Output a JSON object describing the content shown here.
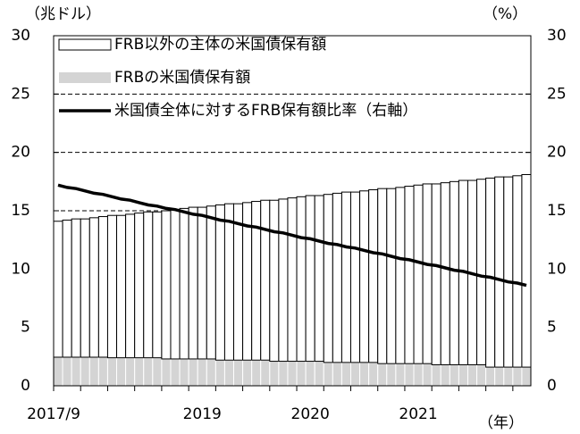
{
  "chart_data": {
    "type": "bar+line",
    "y_label": "（兆ドル）",
    "y2_label": "（%）",
    "x_label": "（年）",
    "categories": [
      "2017/9",
      null,
      null,
      null,
      null,
      null,
      null,
      null,
      null,
      null,
      null,
      null,
      null,
      null,
      null,
      null,
      "2019",
      null,
      null,
      null,
      null,
      null,
      null,
      null,
      null,
      null,
      null,
      null,
      "2020",
      null,
      null,
      null,
      null,
      null,
      null,
      null,
      null,
      null,
      null,
      null,
      "2021",
      null,
      null,
      null,
      null,
      null,
      null,
      null,
      null,
      null,
      null,
      null,
      null
    ],
    "series": [
      {
        "name": "FRB以外の主体の米国債保有額",
        "type": "bar",
        "color": "#ffffff",
        "values": [
          11.65,
          11.75,
          11.85,
          11.85,
          11.95,
          12.05,
          12.2,
          12.2,
          12.3,
          12.4,
          12.5,
          12.5,
          12.7,
          12.8,
          12.9,
          13.0,
          13.0,
          13.1,
          13.3,
          13.4,
          13.4,
          13.5,
          13.6,
          13.7,
          13.8,
          13.9,
          14.0,
          14.1,
          14.2,
          14.2,
          14.4,
          14.5,
          14.6,
          14.6,
          14.7,
          14.8,
          15.0,
          15.0,
          15.1,
          15.2,
          15.3,
          15.4,
          15.5,
          15.6,
          15.7,
          15.8,
          15.8,
          15.9,
          16.2,
          16.3,
          16.3,
          16.4,
          16.5
        ]
      },
      {
        "name": "FRBの米国債保有額",
        "type": "bar",
        "color": "#d4d4d4",
        "values": [
          2.45,
          2.45,
          2.45,
          2.45,
          2.45,
          2.45,
          2.4,
          2.4,
          2.4,
          2.4,
          2.4,
          2.4,
          2.3,
          2.3,
          2.3,
          2.3,
          2.3,
          2.3,
          2.2,
          2.2,
          2.2,
          2.2,
          2.2,
          2.2,
          2.1,
          2.1,
          2.1,
          2.1,
          2.1,
          2.1,
          2.0,
          2.0,
          2.0,
          2.0,
          2.0,
          2.0,
          1.9,
          1.9,
          1.9,
          1.9,
          1.9,
          1.9,
          1.8,
          1.8,
          1.8,
          1.8,
          1.8,
          1.8,
          1.6,
          1.6,
          1.6,
          1.6,
          1.6
        ]
      },
      {
        "name": "米国債全体に対するFRB保有額比率（右軸）",
        "type": "line",
        "axis": "y2",
        "color": "#000000",
        "values": [
          17.2,
          17.0,
          16.9,
          16.7,
          16.5,
          16.4,
          16.2,
          16.0,
          15.9,
          15.7,
          15.5,
          15.4,
          15.2,
          15.1,
          14.9,
          14.7,
          14.6,
          14.4,
          14.2,
          14.1,
          13.9,
          13.7,
          13.6,
          13.4,
          13.2,
          13.1,
          12.9,
          12.7,
          12.6,
          12.4,
          12.2,
          12.1,
          11.9,
          11.8,
          11.6,
          11.4,
          11.3,
          11.1,
          10.9,
          10.8,
          10.6,
          10.4,
          10.3,
          10.1,
          9.9,
          9.8,
          9.6,
          9.4,
          9.3,
          9.1,
          8.9,
          8.8,
          8.6
        ]
      }
    ],
    "ylim": [
      0,
      30
    ],
    "yticks": [
      0,
      5,
      10,
      15,
      20,
      25,
      30
    ],
    "y2lim": [
      0,
      30
    ],
    "y2ticks": [
      0,
      5,
      10,
      15,
      20,
      25,
      30
    ],
    "grid": true,
    "legend": "upper left"
  }
}
